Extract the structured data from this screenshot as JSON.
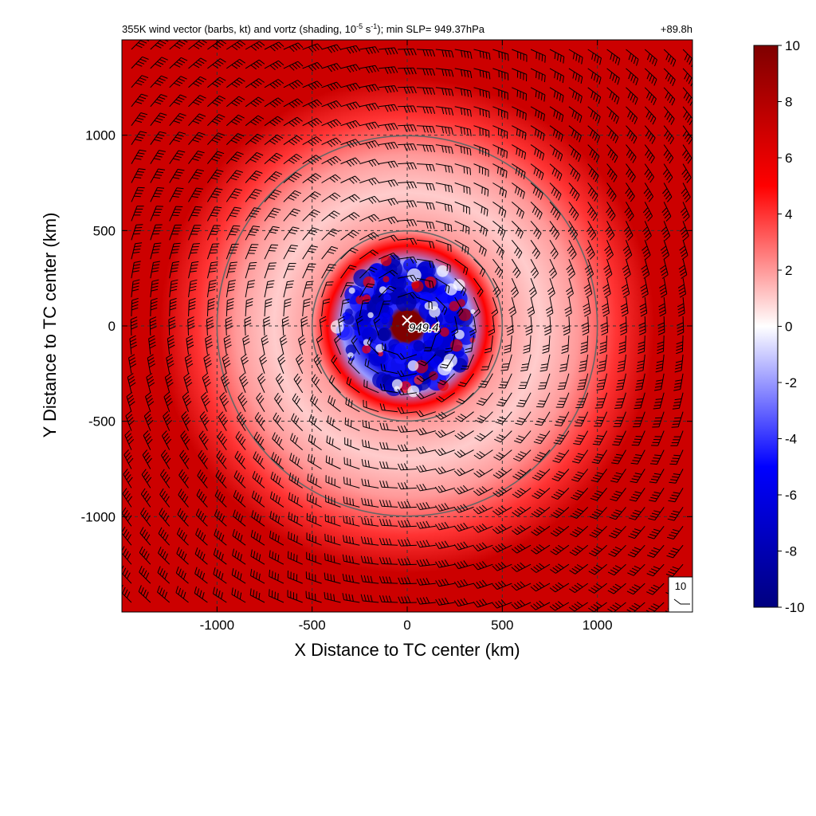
{
  "chart_data": {
    "type": "heatmap",
    "title": "355K wind vector (barbs, kt) and vortz (shading, 10",
    "title_sup1": "-5",
    "title_mid": " s",
    "title_sup2": "-1",
    "title_end": "); min SLP= 949.37hPa",
    "time_label": "+89.8h",
    "xlabel": "X Distance to TC center (km)",
    "ylabel": "Y Distance to TC center (km)",
    "xlim": [
      -1500,
      1500
    ],
    "ylim": [
      -1500,
      1500
    ],
    "xticks": [
      -1000,
      -500,
      0,
      500,
      1000
    ],
    "yticks": [
      -1000,
      -500,
      0,
      500,
      1000
    ],
    "xtick_labels": [
      "-1000",
      "-500",
      "0",
      "500",
      "1000"
    ],
    "ytick_labels": [
      "-1000",
      "-500",
      "0",
      "500",
      "1000"
    ],
    "grid": "dashed",
    "range_rings_km": [
      500,
      1000
    ],
    "center_label": "949.4",
    "reference_barb_label": "10",
    "colorbar": {
      "range": [
        -10,
        10
      ],
      "ticks": [
        10,
        8,
        6,
        4,
        2,
        0,
        -2,
        -4,
        -6,
        -8,
        -10
      ],
      "tick_labels": [
        "10",
        "8",
        "6",
        "4",
        "2",
        "0",
        "-2",
        "-4",
        "-6",
        "-8",
        "-10"
      ],
      "colors": [
        "#00007f",
        "#0000ff",
        "#ffffff",
        "#ff0000",
        "#7f0000"
      ]
    },
    "vorticity_profile": [
      {
        "r_km": 0,
        "value": 10
      },
      {
        "r_km": 80,
        "value": 10
      },
      {
        "r_km": 110,
        "value": -4
      },
      {
        "r_km": 250,
        "value": -6
      },
      {
        "r_km": 340,
        "value": -2
      },
      {
        "r_km": 420,
        "value": 5
      },
      {
        "r_km": 500,
        "value": 2
      },
      {
        "r_km": 700,
        "value": 1
      },
      {
        "r_km": 900,
        "value": 2
      },
      {
        "r_km": 1100,
        "value": 4
      },
      {
        "r_km": 1300,
        "value": 7
      },
      {
        "r_km": 1500,
        "value": 7
      }
    ],
    "barb_spacing_km": 100,
    "wind_circulation": "cyclonic"
  }
}
